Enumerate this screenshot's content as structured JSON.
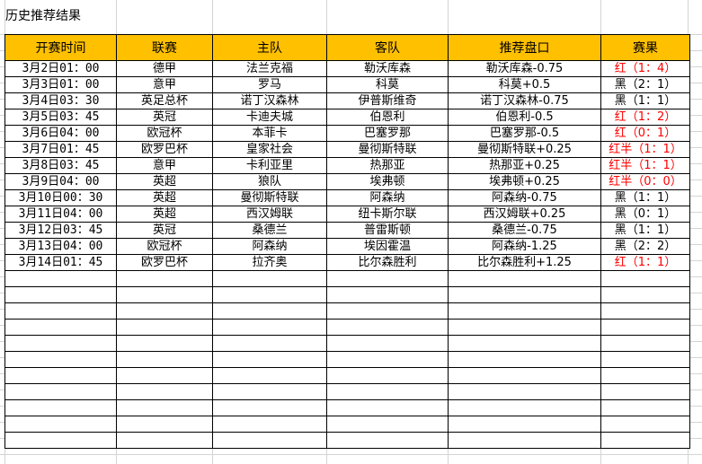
{
  "sheet": {
    "title": "历史推荐结果"
  },
  "table": {
    "headers": [
      "开赛时间",
      "联赛",
      "主队",
      "客队",
      "推荐盘口",
      "赛果"
    ],
    "rows": [
      {
        "time": "3月2日01：00",
        "league": "德甲",
        "home": "法兰克福",
        "away": "勒沃库森",
        "pick": "勒沃库森-0.75",
        "result": "红（1：4）",
        "color": "red"
      },
      {
        "time": "3月3日01：00",
        "league": "意甲",
        "home": "罗马",
        "away": "科莫",
        "pick": "科莫+0.5",
        "result": "黑（2：1）",
        "color": "black"
      },
      {
        "time": "3月4日03：30",
        "league": "英足总杯",
        "home": "诺丁汉森林",
        "away": "伊普斯维奇",
        "pick": "诺丁汉森林-0.75",
        "result": "黑（1：1）",
        "color": "black"
      },
      {
        "time": "3月5日03：45",
        "league": "英冠",
        "home": "卡迪夫城",
        "away": "伯恩利",
        "pick": "伯恩利-0.5",
        "result": "红（1：2）",
        "color": "red"
      },
      {
        "time": "3月6日04：00",
        "league": "欧冠杯",
        "home": "本菲卡",
        "away": "巴塞罗那",
        "pick": "巴塞罗那-0.5",
        "result": "红（0：1）",
        "color": "red"
      },
      {
        "time": "3月7日01：45",
        "league": "欧罗巴杯",
        "home": "皇家社会",
        "away": "曼彻斯特联",
        "pick": "曼彻斯特联+0.25",
        "result": "红半（1：1）",
        "color": "red"
      },
      {
        "time": "3月8日03：45",
        "league": "意甲",
        "home": "卡利亚里",
        "away": "热那亚",
        "pick": "热那亚+0.25",
        "result": "红半（1：1）",
        "color": "red"
      },
      {
        "time": "3月9日04：00",
        "league": "英超",
        "home": "狼队",
        "away": "埃弗顿",
        "pick": "埃弗顿+0.25",
        "result": "红半（0：0）",
        "color": "red"
      },
      {
        "time": "3月10日00：30",
        "league": "英超",
        "home": "曼彻斯特联",
        "away": "阿森纳",
        "pick": "阿森纳-0.75",
        "result": "黑（1：1）",
        "color": "black"
      },
      {
        "time": "3月11日04：00",
        "league": "英超",
        "home": "西汉姆联",
        "away": "纽卡斯尔联",
        "pick": "西汉姆联+0.25",
        "result": "黑（0：1）",
        "color": "black"
      },
      {
        "time": "3月12日03：45",
        "league": "英冠",
        "home": "桑德兰",
        "away": "普雷斯顿",
        "pick": "桑德兰-0.75",
        "result": "黑（1：1）",
        "color": "black"
      },
      {
        "time": "3月13日04：00",
        "league": "欧冠杯",
        "home": "阿森纳",
        "away": "埃因霍温",
        "pick": "阿森纳-1.25",
        "result": "黑（2：2）",
        "color": "black"
      },
      {
        "time": "3月14日01：45",
        "league": "欧罗巴杯",
        "home": "拉齐奥",
        "away": "比尔森胜利",
        "pick": "比尔森胜利+1.25",
        "result": "红（1：1）",
        "color": "red"
      }
    ],
    "empty_rows": 11
  },
  "colors": {
    "header_bg": "#ffc000",
    "red": "#ff0000",
    "black": "#000000"
  }
}
